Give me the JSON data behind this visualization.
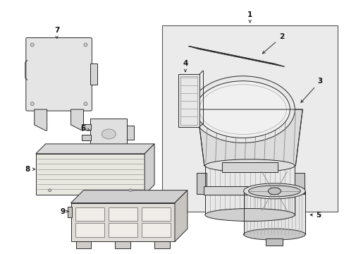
{
  "background_color": "#ffffff",
  "figure_width": 4.89,
  "figure_height": 3.6,
  "dpi": 100,
  "line_color": "#2a2a2a",
  "fill_light": "#f0f0f0",
  "fill_mid": "#e0e0e0",
  "fill_dark": "#c8c8c8",
  "fill_box": "#ebebeb",
  "font_size": 7.5,
  "text_color": "#111111"
}
